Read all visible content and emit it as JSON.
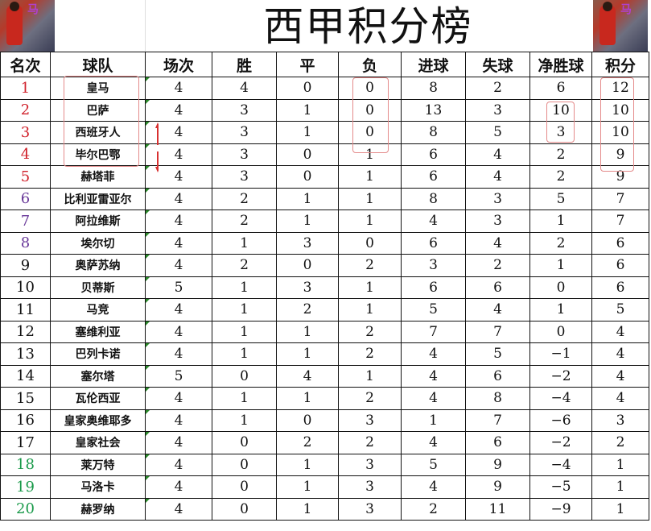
{
  "title": "西甲积分榜",
  "columns": [
    "名次",
    "球队",
    "场次",
    "胜",
    "平",
    "负",
    "进球",
    "失球",
    "净胜球",
    "积分"
  ],
  "rank_colors": {
    "top": "#d0202a",
    "europe": "#6a3a9a",
    "normal": "#111111",
    "relegation": "#1a9a4a"
  },
  "rows": [
    {
      "rank": "1",
      "team": "皇马",
      "played": "4",
      "won": "4",
      "drawn": "0",
      "lost": "0",
      "gf": "8",
      "ga": "2",
      "gd": "6",
      "pts": "12",
      "zone": "top"
    },
    {
      "rank": "2",
      "team": "巴萨",
      "played": "4",
      "won": "3",
      "drawn": "1",
      "lost": "0",
      "gf": "13",
      "ga": "3",
      "gd": "10",
      "pts": "10",
      "zone": "top"
    },
    {
      "rank": "3",
      "team": "西班牙人",
      "played": "4",
      "won": "3",
      "drawn": "1",
      "lost": "0",
      "gf": "8",
      "ga": "5",
      "gd": "3",
      "pts": "10",
      "zone": "top"
    },
    {
      "rank": "4",
      "team": "毕尔巴鄂",
      "played": "4",
      "won": "3",
      "drawn": "0",
      "lost": "1",
      "gf": "6",
      "ga": "4",
      "gd": "2",
      "pts": "9",
      "zone": "top"
    },
    {
      "rank": "5",
      "team": "赫塔菲",
      "played": "4",
      "won": "3",
      "drawn": "0",
      "lost": "1",
      "gf": "6",
      "ga": "4",
      "gd": "2",
      "pts": "9",
      "zone": "top"
    },
    {
      "rank": "6",
      "team": "比利亚雷亚尔",
      "played": "4",
      "won": "2",
      "drawn": "1",
      "lost": "1",
      "gf": "8",
      "ga": "3",
      "gd": "5",
      "pts": "7",
      "zone": "europe"
    },
    {
      "rank": "7",
      "team": "阿拉维斯",
      "played": "4",
      "won": "2",
      "drawn": "1",
      "lost": "1",
      "gf": "4",
      "ga": "3",
      "gd": "1",
      "pts": "7",
      "zone": "europe"
    },
    {
      "rank": "8",
      "team": "埃尔切",
      "played": "4",
      "won": "1",
      "drawn": "3",
      "lost": "0",
      "gf": "6",
      "ga": "4",
      "gd": "2",
      "pts": "6",
      "zone": "europe"
    },
    {
      "rank": "9",
      "team": "奥萨苏纳",
      "played": "4",
      "won": "2",
      "drawn": "0",
      "lost": "2",
      "gf": "3",
      "ga": "2",
      "gd": "1",
      "pts": "6",
      "zone": "normal"
    },
    {
      "rank": "10",
      "team": "贝蒂斯",
      "played": "5",
      "won": "1",
      "drawn": "3",
      "lost": "1",
      "gf": "6",
      "ga": "6",
      "gd": "0",
      "pts": "6",
      "zone": "normal"
    },
    {
      "rank": "11",
      "team": "马竞",
      "played": "4",
      "won": "1",
      "drawn": "2",
      "lost": "1",
      "gf": "5",
      "ga": "4",
      "gd": "1",
      "pts": "5",
      "zone": "normal"
    },
    {
      "rank": "12",
      "team": "塞维利亚",
      "played": "4",
      "won": "1",
      "drawn": "1",
      "lost": "2",
      "gf": "7",
      "ga": "7",
      "gd": "0",
      "pts": "4",
      "zone": "normal"
    },
    {
      "rank": "13",
      "team": "巴列卡诺",
      "played": "4",
      "won": "1",
      "drawn": "1",
      "lost": "2",
      "gf": "4",
      "ga": "5",
      "gd": "−1",
      "pts": "4",
      "zone": "normal"
    },
    {
      "rank": "14",
      "team": "塞尔塔",
      "played": "5",
      "won": "0",
      "drawn": "4",
      "lost": "1",
      "gf": "4",
      "ga": "6",
      "gd": "−2",
      "pts": "4",
      "zone": "normal"
    },
    {
      "rank": "15",
      "team": "瓦伦西亚",
      "played": "4",
      "won": "1",
      "drawn": "1",
      "lost": "2",
      "gf": "4",
      "ga": "8",
      "gd": "−4",
      "pts": "4",
      "zone": "normal"
    },
    {
      "rank": "16",
      "team": "皇家奥维耶多",
      "played": "4",
      "won": "1",
      "drawn": "0",
      "lost": "3",
      "gf": "1",
      "ga": "7",
      "gd": "−6",
      "pts": "3",
      "zone": "normal"
    },
    {
      "rank": "17",
      "team": "皇家社会",
      "played": "4",
      "won": "0",
      "drawn": "2",
      "lost": "2",
      "gf": "4",
      "ga": "6",
      "gd": "−2",
      "pts": "2",
      "zone": "normal"
    },
    {
      "rank": "18",
      "team": "莱万特",
      "played": "4",
      "won": "0",
      "drawn": "1",
      "lost": "3",
      "gf": "5",
      "ga": "9",
      "gd": "−4",
      "pts": "1",
      "zone": "relegation"
    },
    {
      "rank": "19",
      "team": "马洛卡",
      "played": "4",
      "won": "0",
      "drawn": "1",
      "lost": "3",
      "gf": "4",
      "ga": "9",
      "gd": "−5",
      "pts": "1",
      "zone": "relegation"
    },
    {
      "rank": "20",
      "team": "赫罗纳",
      "played": "4",
      "won": "0",
      "drawn": "1",
      "lost": "3",
      "gf": "2",
      "ga": "11",
      "gd": "−9",
      "pts": "1",
      "zone": "relegation"
    }
  ],
  "highlight_color": "#e48a8a",
  "arrow_color": "#d83030"
}
